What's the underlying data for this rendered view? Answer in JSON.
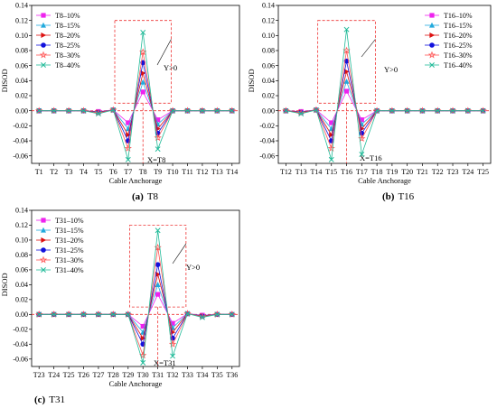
{
  "palette": {
    "10": "#ee22ee",
    "15": "#22aadd",
    "20": "#dd1111",
    "25": "#1111dd",
    "30": "#ff5555",
    "40": "#22bb99"
  },
  "chart_data": [
    {
      "type": "line",
      "id": "a",
      "caption_letter": "(a)",
      "caption_text": "T8",
      "xlabel": "Cable Anchorage",
      "ylabel": "DISOD",
      "ylim": [
        -0.07,
        0.14
      ],
      "yticks": [
        "-0.06",
        "-0.04",
        "-0.02",
        "0.00",
        "0.02",
        "0.04",
        "0.06",
        "0.08",
        "0.10",
        "0.12",
        "0.14"
      ],
      "categories": [
        "T1",
        "T2",
        "T3",
        "T4",
        "T5",
        "T6",
        "T7",
        "T8",
        "T9",
        "T10",
        "T11",
        "T12",
        "T13",
        "T14"
      ],
      "legend_position": "top-left",
      "annotation_y": "Y>0",
      "annotation_x": "X=T8",
      "center_index": 7,
      "series": [
        {
          "name": "T8–10%",
          "key": "10",
          "marker": "square",
          "values": [
            0,
            0,
            0,
            0,
            -0.001,
            0.001,
            -0.016,
            0.025,
            -0.012,
            0,
            0,
            0,
            0,
            0
          ]
        },
        {
          "name": "T8–15%",
          "key": "15",
          "marker": "triangle",
          "values": [
            0,
            0,
            0,
            0,
            -0.0015,
            0.001,
            -0.024,
            0.038,
            -0.018,
            0,
            0,
            0,
            0,
            0
          ]
        },
        {
          "name": "T8–20%",
          "key": "20",
          "marker": "tri-right",
          "values": [
            0,
            0,
            0,
            0,
            -0.002,
            0.001,
            -0.032,
            0.05,
            -0.024,
            0,
            0,
            0,
            0,
            0
          ]
        },
        {
          "name": "T8–25%",
          "key": "25",
          "marker": "circle",
          "values": [
            0,
            0,
            0,
            0,
            -0.0025,
            0.001,
            -0.04,
            0.064,
            -0.03,
            0,
            0,
            0,
            0,
            0
          ]
        },
        {
          "name": "T8–30%",
          "key": "30",
          "marker": "star",
          "values": [
            0,
            0,
            0,
            0,
            -0.003,
            0.001,
            -0.05,
            0.078,
            -0.036,
            0,
            0,
            0,
            0,
            0
          ]
        },
        {
          "name": "T8–40%",
          "key": "40",
          "marker": "x",
          "values": [
            0,
            0,
            0,
            0,
            -0.004,
            0.001,
            -0.065,
            0.104,
            -0.051,
            0,
            0,
            0,
            0,
            0
          ]
        }
      ]
    },
    {
      "type": "line",
      "id": "b",
      "caption_letter": "(b)",
      "caption_text": "T16",
      "xlabel": "Cable Anchorage",
      "ylabel": "DISOD",
      "ylim": [
        -0.07,
        0.14
      ],
      "yticks": [
        "-0.06",
        "-0.04",
        "-0.02",
        "0.00",
        "0.02",
        "0.04",
        "0.06",
        "0.08",
        "0.10",
        "0.12",
        "0.14"
      ],
      "categories": [
        "T12",
        "T13",
        "T14",
        "T15",
        "T16",
        "T17",
        "T18",
        "T19",
        "T20",
        "T21",
        "T22",
        "T23",
        "T24",
        "T25"
      ],
      "legend_position": "top-right",
      "annotation_y": "Y>0",
      "annotation_x": "X=T16",
      "center_index": 4,
      "series": [
        {
          "name": "T16–10%",
          "key": "10",
          "marker": "square",
          "values": [
            0,
            -0.001,
            0.001,
            -0.016,
            0.026,
            -0.012,
            0,
            0,
            0,
            0,
            0,
            0,
            0,
            0
          ]
        },
        {
          "name": "T16–15%",
          "key": "15",
          "marker": "triangle",
          "values": [
            0,
            -0.0015,
            0.001,
            -0.024,
            0.039,
            -0.018,
            0,
            0,
            0,
            0,
            0,
            0,
            0,
            0
          ]
        },
        {
          "name": "T16–20%",
          "key": "20",
          "marker": "tri-right",
          "values": [
            0,
            -0.002,
            0.001,
            -0.032,
            0.052,
            -0.024,
            0,
            0,
            0,
            0,
            0,
            0,
            0,
            0
          ]
        },
        {
          "name": "T16–25%",
          "key": "25",
          "marker": "circle",
          "values": [
            0,
            -0.0025,
            0.001,
            -0.04,
            0.066,
            -0.03,
            0,
            0,
            0,
            0,
            0,
            0,
            0,
            0
          ]
        },
        {
          "name": "T16–30%",
          "key": "30",
          "marker": "star",
          "values": [
            0,
            -0.003,
            0.001,
            -0.05,
            0.08,
            -0.037,
            0,
            0,
            0,
            0,
            0,
            0,
            0,
            0
          ]
        },
        {
          "name": "T16–40%",
          "key": "40",
          "marker": "x",
          "values": [
            0,
            -0.004,
            0.001,
            -0.065,
            0.108,
            -0.058,
            0,
            0,
            0,
            0,
            0,
            0,
            0,
            0
          ]
        }
      ]
    },
    {
      "type": "line",
      "id": "c",
      "caption_letter": "(c)",
      "caption_text": "T31",
      "xlabel": "Cable Anchorage",
      "ylabel": "DISOD",
      "ylim": [
        -0.07,
        0.14
      ],
      "yticks": [
        "-0.06",
        "-0.04",
        "-0.02",
        "0.00",
        "0.02",
        "0.04",
        "0.06",
        "0.08",
        "0.10",
        "0.12",
        "0.14"
      ],
      "categories": [
        "T23",
        "T24",
        "T25",
        "T26",
        "T27",
        "T28",
        "T29",
        "T30",
        "T31",
        "T32",
        "T33",
        "T34",
        "T35",
        "T36"
      ],
      "legend_position": "top-left",
      "annotation_y": "Y>0",
      "annotation_x": "X=T31",
      "center_index": 8,
      "series": [
        {
          "name": "T31–10%",
          "key": "10",
          "marker": "square",
          "values": [
            0,
            0,
            0,
            0,
            0,
            0,
            0,
            -0.016,
            0.027,
            -0.012,
            0.001,
            -0.001,
            0,
            0
          ]
        },
        {
          "name": "T31–15%",
          "key": "15",
          "marker": "triangle",
          "values": [
            0,
            0,
            0,
            0,
            0,
            0,
            0,
            -0.024,
            0.04,
            -0.018,
            0.001,
            -0.0015,
            0,
            0
          ]
        },
        {
          "name": "T31–20%",
          "key": "20",
          "marker": "tri-right",
          "values": [
            0,
            0,
            0,
            0,
            0,
            0,
            0,
            -0.032,
            0.054,
            -0.024,
            0.001,
            -0.002,
            0,
            0
          ]
        },
        {
          "name": "T31–25%",
          "key": "25",
          "marker": "circle",
          "values": [
            0,
            0,
            0,
            0,
            0,
            0,
            0,
            -0.04,
            0.067,
            -0.032,
            0.001,
            -0.0025,
            0,
            0
          ]
        },
        {
          "name": "T31–30%",
          "key": "30",
          "marker": "star",
          "values": [
            0,
            0,
            0,
            0,
            0,
            0,
            0,
            -0.055,
            0.09,
            -0.04,
            0.001,
            -0.003,
            0,
            0
          ]
        },
        {
          "name": "T31–40%",
          "key": "40",
          "marker": "x",
          "values": [
            0,
            0,
            0,
            0,
            0,
            0,
            0,
            -0.065,
            0.113,
            -0.056,
            0.001,
            -0.004,
            0,
            0
          ]
        }
      ]
    }
  ]
}
